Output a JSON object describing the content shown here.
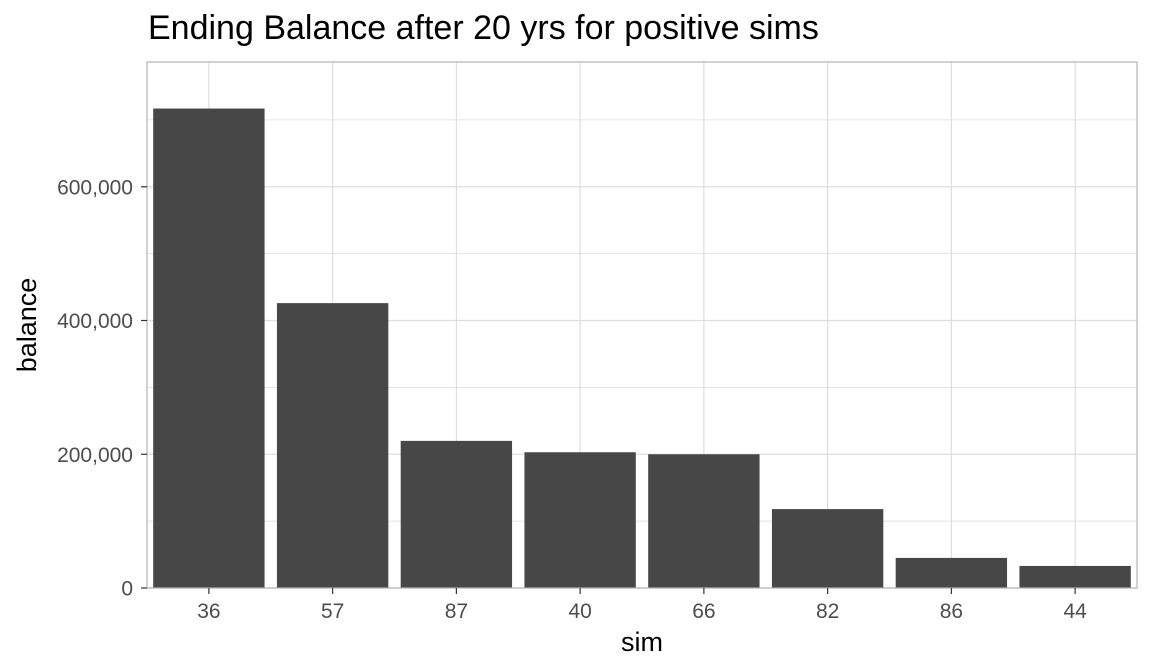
{
  "chart_data": {
    "type": "bar",
    "title": "Ending Balance after 20 yrs for positive sims",
    "xlabel": "sim",
    "ylabel": "balance",
    "categories": [
      "36",
      "57",
      "87",
      "40",
      "66",
      "82",
      "86",
      "44"
    ],
    "values": [
      717000,
      426000,
      220000,
      203000,
      200000,
      118000,
      45000,
      33000
    ],
    "ylim": [
      0,
      750000
    ],
    "y_major_ticks": [
      0,
      200000,
      400000,
      600000
    ],
    "y_tick_labels": [
      "0",
      "200,000",
      "400,000",
      "600,000"
    ],
    "y_minor_ticks": [
      100000,
      300000,
      500000,
      700000
    ],
    "grid": true,
    "bar_color": "#474747",
    "grid_color": "#dedede",
    "panel_border_color": "#b3b3b3",
    "tick_label_color": "#4d4d4d"
  }
}
